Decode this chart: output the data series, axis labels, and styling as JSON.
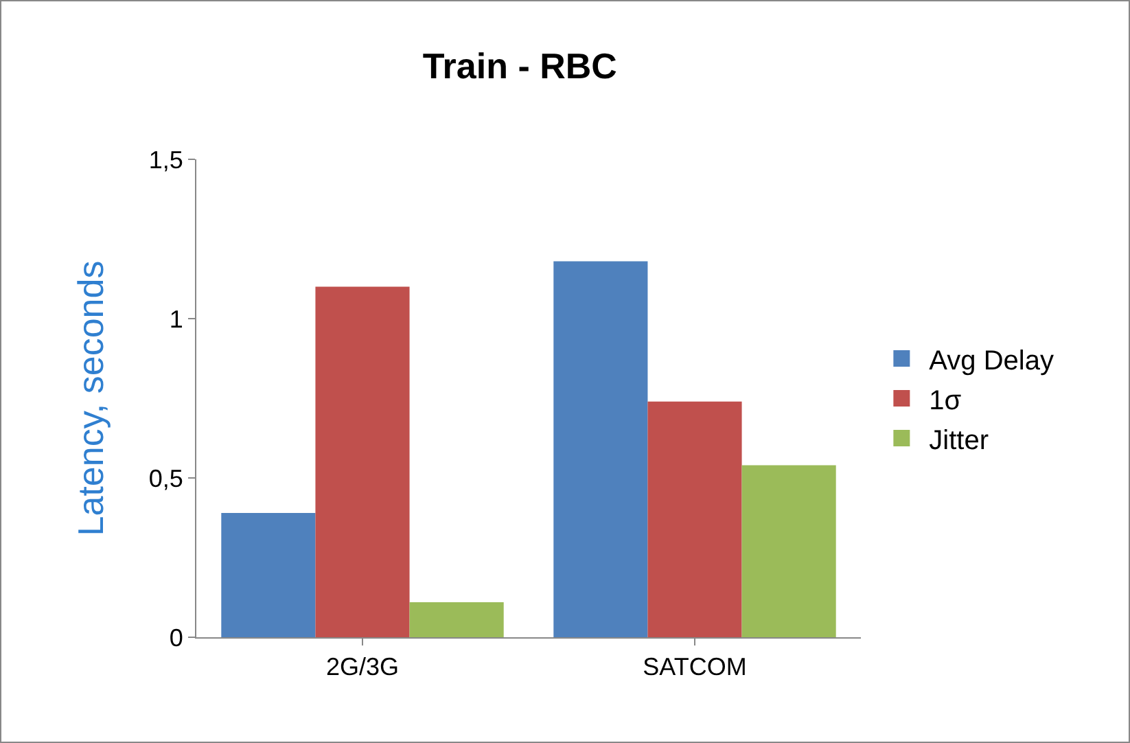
{
  "chart_data": {
    "type": "bar",
    "title": "Train - RBC",
    "ylabel": "Latency, seconds",
    "categories": [
      "2G/3G",
      "SATCOM"
    ],
    "series": [
      {
        "name": "Avg Delay",
        "color": "#4f81bd",
        "values": [
          0.39,
          1.18
        ]
      },
      {
        "name": "1σ",
        "color": "#c0504d",
        "values": [
          1.1,
          0.74
        ]
      },
      {
        "name": "Jitter",
        "color": "#9bbb59",
        "values": [
          0.11,
          0.54
        ]
      }
    ],
    "ylim": [
      0,
      1.5
    ],
    "yticks": [
      0,
      {
        "value": 0.5,
        "label": "0,5"
      },
      1,
      {
        "value": 1.5,
        "label": "1,5"
      }
    ],
    "grid": false,
    "legend": "right"
  }
}
